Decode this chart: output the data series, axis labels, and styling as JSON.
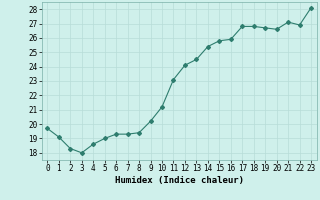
{
  "title": "",
  "xlabel": "Humidex (Indice chaleur)",
  "ylabel": "",
  "x": [
    0,
    1,
    2,
    3,
    4,
    5,
    6,
    7,
    8,
    9,
    10,
    11,
    12,
    13,
    14,
    15,
    16,
    17,
    18,
    19,
    20,
    21,
    22,
    23
  ],
  "y": [
    19.7,
    19.1,
    18.3,
    18.0,
    18.6,
    19.0,
    19.3,
    19.3,
    19.4,
    20.2,
    21.2,
    23.1,
    24.1,
    24.5,
    25.4,
    25.8,
    25.9,
    26.8,
    26.8,
    26.7,
    26.6,
    27.1,
    26.9,
    28.1
  ],
  "line_color": "#2e7d6e",
  "bg_color": "#cff0eb",
  "grid_color": "#b8ddd8",
  "ylim": [
    17.5,
    28.5
  ],
  "xlim": [
    -0.5,
    23.5
  ],
  "yticks": [
    18,
    19,
    20,
    21,
    22,
    23,
    24,
    25,
    26,
    27,
    28
  ],
  "xticks": [
    0,
    1,
    2,
    3,
    4,
    5,
    6,
    7,
    8,
    9,
    10,
    11,
    12,
    13,
    14,
    15,
    16,
    17,
    18,
    19,
    20,
    21,
    22,
    23
  ],
  "marker": "D",
  "markersize": 2.0,
  "linewidth": 0.8,
  "xlabel_fontsize": 6.5,
  "tick_fontsize": 5.5
}
